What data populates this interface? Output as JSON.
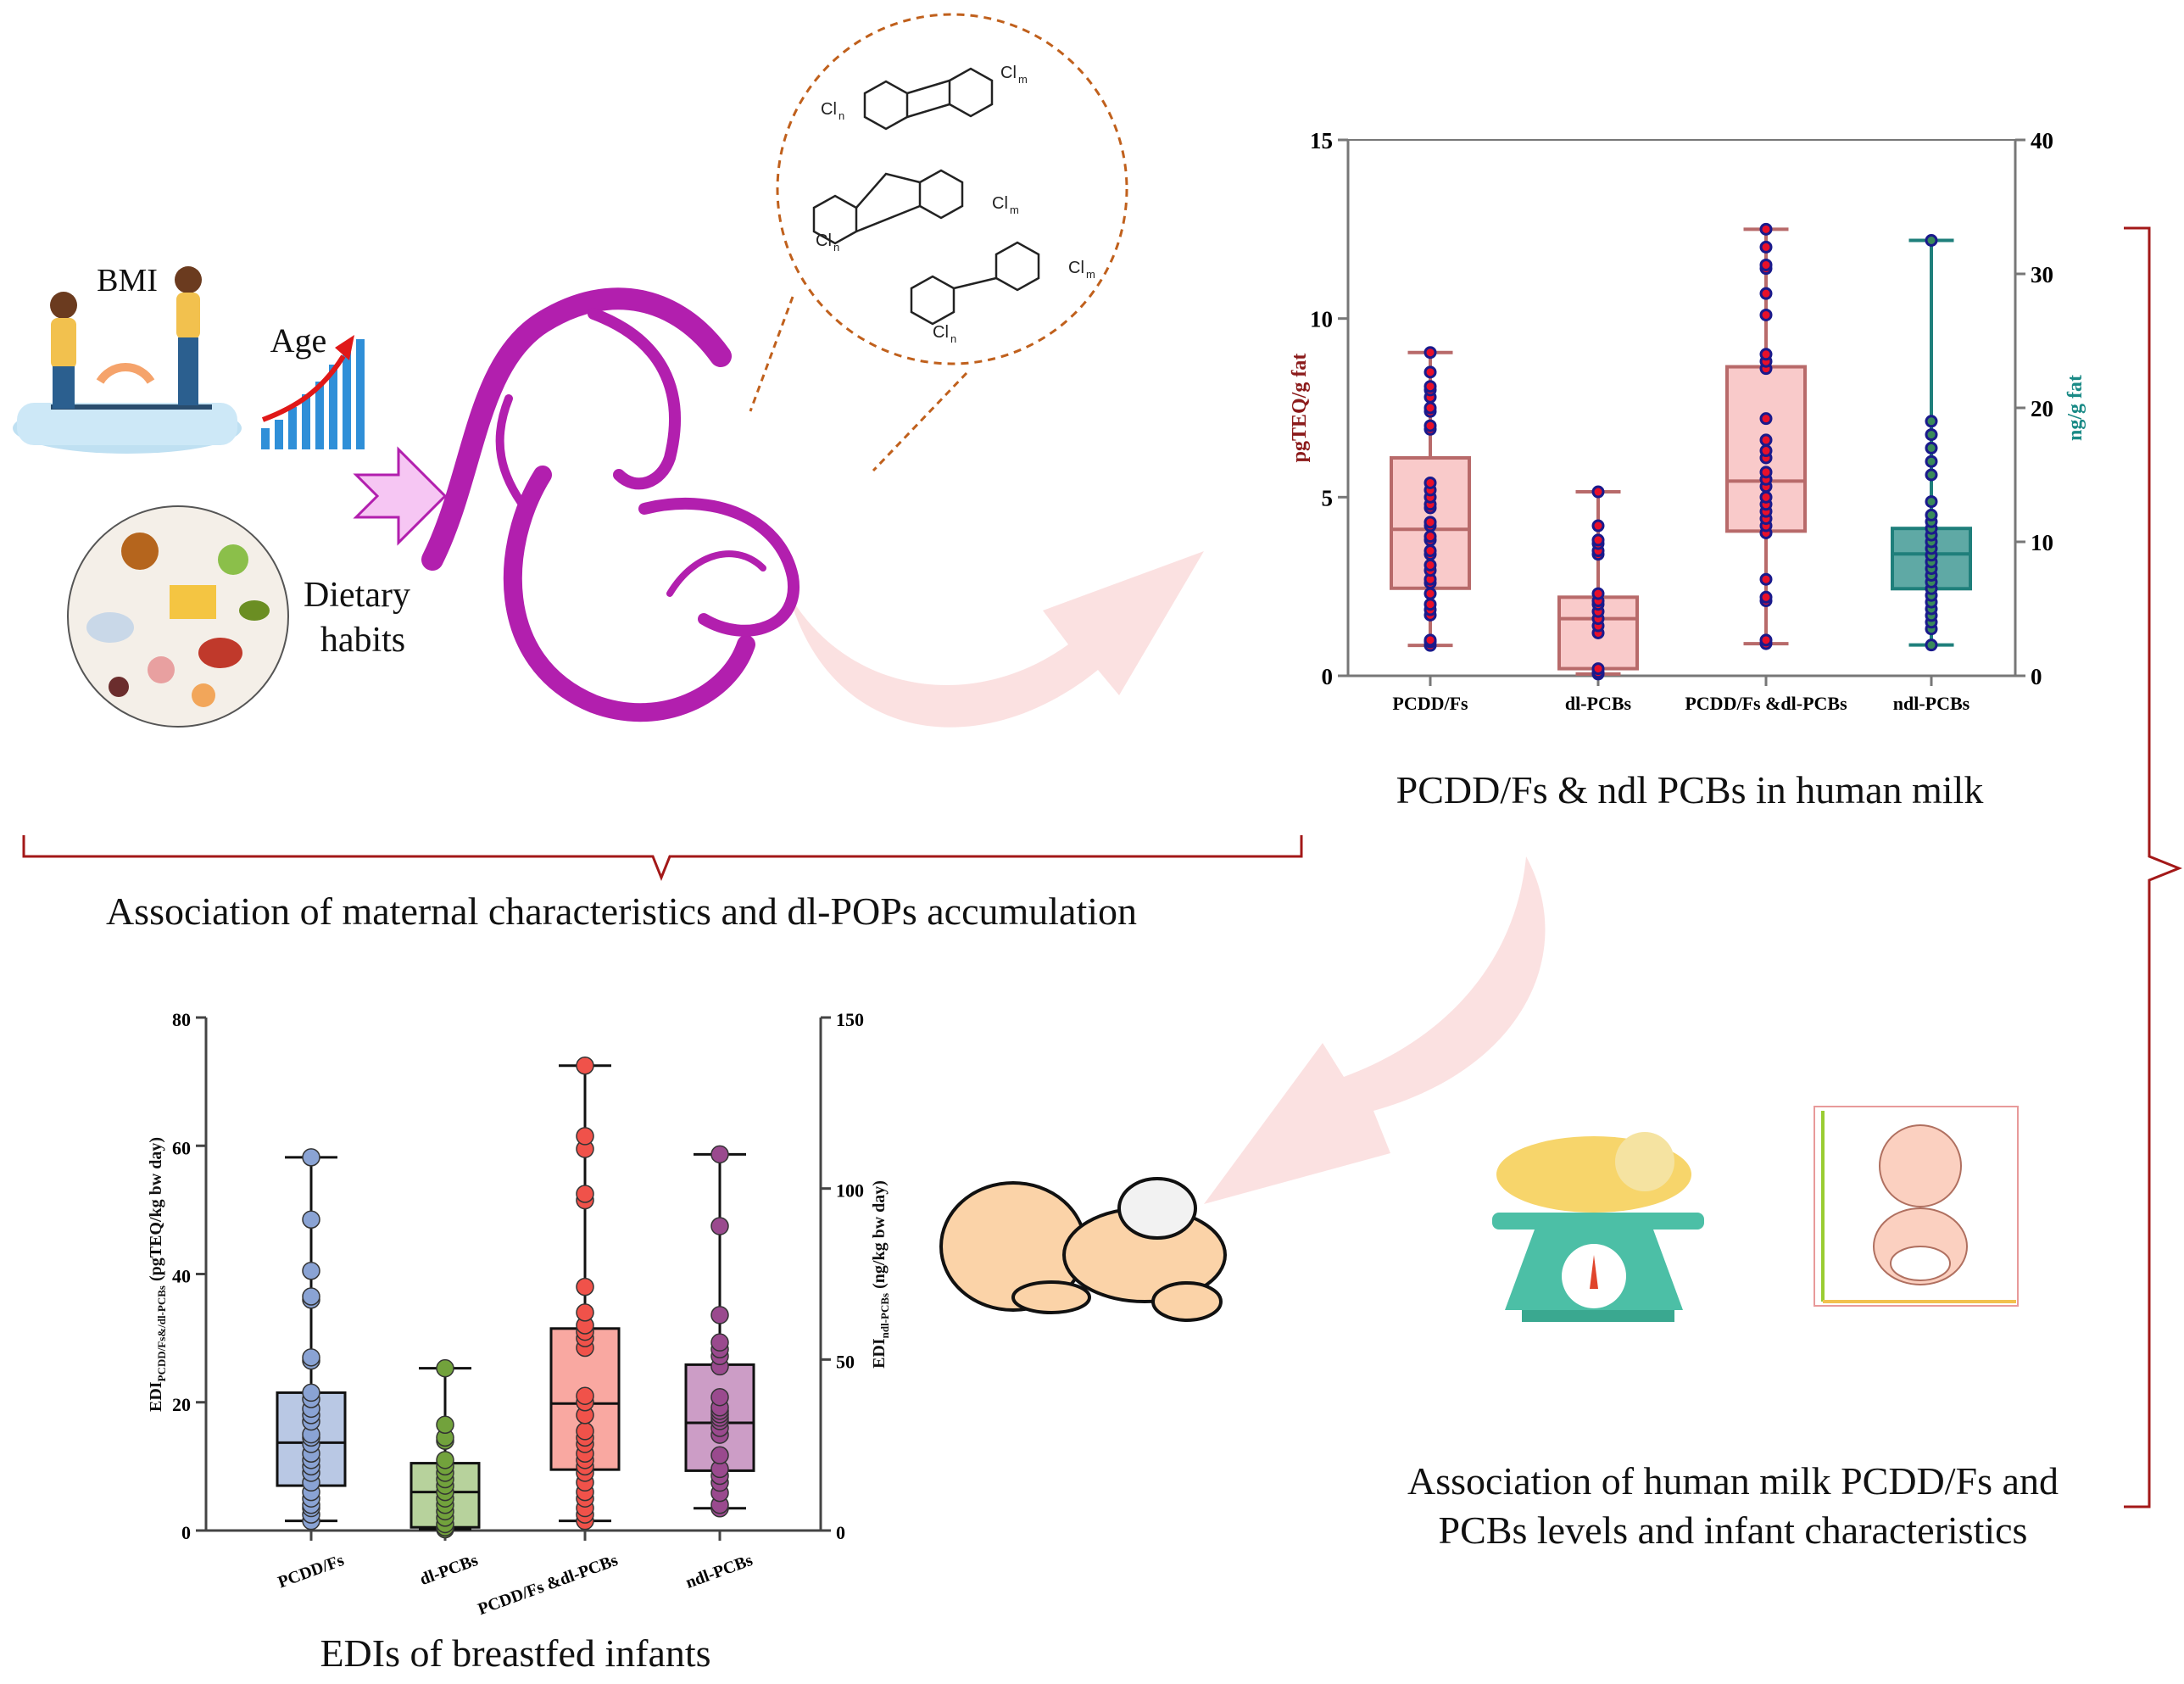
{
  "left_panel": {
    "bmi_label": "BMI",
    "age_label": "Age",
    "diet_label_line1": "Dietary",
    "diet_label_line2": "habits",
    "caption": "Association of maternal characteristics and dl-POPs accumulation"
  },
  "molecules": {
    "labels": [
      "Cl",
      "m",
      "Cl",
      "n",
      "Cl",
      "m",
      "Cl",
      "n",
      "Cl",
      "m",
      "Cl",
      "n"
    ]
  },
  "top_chart_caption": "PCDD/Fs & ndl PCBs in human milk",
  "infant_caption_line1": "Association of human milk PCDD/Fs and",
  "infant_caption_line2": "PCBs levels and infant characteristics",
  "bottom_chart_caption": "EDIs of breastfed infants",
  "colors": {
    "mother": "#b21fae",
    "arrow_pink": "#f7c9c9",
    "bracket": "#a31818",
    "molecule_circle": "#c0601c"
  },
  "chart_data": [
    {
      "type": "box",
      "title": "",
      "categories": [
        "PCDD/Fs",
        "dl-PCBs",
        "PCDD/Fs &dl-PCBs",
        "ndl-PCBs"
      ],
      "ylabel_left": "pgTEQ/g fat",
      "ylabel_right": "ng/g fat",
      "ylim_left": [
        0,
        15
      ],
      "ylim_right": [
        0,
        40
      ],
      "yticks_left": [
        "0",
        "5",
        "10",
        "15"
      ],
      "yticks_right": [
        "0",
        "10",
        "20",
        "30",
        "40"
      ],
      "grid": false,
      "label_colors": {
        "left": "#8b1a1a",
        "right": "#1a8a86"
      },
      "series": [
        {
          "category": "PCDD/Fs",
          "axis": "left",
          "min": 0.85,
          "q1": 2.45,
          "median": 4.1,
          "q3": 6.1,
          "max": 9.05,
          "box_color": "#f9caca",
          "line_color": "#b86a6a",
          "point_color": "#e8102a",
          "point_edge": "#1a1a8c",
          "points": [
            0.85,
            0.95,
            1.0,
            1.7,
            1.85,
            2.0,
            2.3,
            2.6,
            2.7,
            2.95,
            3.1,
            3.4,
            3.5,
            3.8,
            3.9,
            4.2,
            4.3,
            4.7,
            4.8,
            5.0,
            5.2,
            5.4,
            6.9,
            7.0,
            7.4,
            7.5,
            7.8,
            8.0,
            8.1,
            8.5,
            9.05
          ]
        },
        {
          "category": "dl-PCBs",
          "axis": "left",
          "min": 0.05,
          "q1": 0.2,
          "median": 1.6,
          "q3": 2.2,
          "max": 5.15,
          "box_color": "#f9caca",
          "line_color": "#b86a6a",
          "point_color": "#e8102a",
          "point_edge": "#1a1a8c",
          "points": [
            0.05,
            0.1,
            0.2,
            1.2,
            1.4,
            1.6,
            1.8,
            2.0,
            2.1,
            2.3,
            3.4,
            3.5,
            3.7,
            3.8,
            4.2,
            5.15
          ]
        },
        {
          "category": "PCDD/Fs &dl-PCBs",
          "axis": "left",
          "min": 0.9,
          "q1": 4.05,
          "median": 5.45,
          "q3": 8.65,
          "max": 12.5,
          "box_color": "#f9caca",
          "line_color": "#b86a6a",
          "point_color": "#e8102a",
          "point_edge": "#1a1a8c",
          "points": [
            0.9,
            1.0,
            2.1,
            2.2,
            2.7,
            4.0,
            4.2,
            4.4,
            4.6,
            4.8,
            5.0,
            5.3,
            5.5,
            5.7,
            6.1,
            6.3,
            6.6,
            7.2,
            8.6,
            8.8,
            9.0,
            10.1,
            10.7,
            11.4,
            11.5,
            12.0,
            12.5
          ]
        },
        {
          "category": "ndl-PCBs",
          "axis": "right",
          "min": 2.3,
          "q1": 6.5,
          "median": 9.1,
          "q3": 11.0,
          "max": 32.5,
          "box_color": "#5fa9a5",
          "line_color": "#1f7f7b",
          "point_color": "#3a8a5a",
          "point_edge": "#1a1a8c",
          "points": [
            2.3,
            3.5,
            4.0,
            4.5,
            5.0,
            5.5,
            6.0,
            6.5,
            7.0,
            7.5,
            8.0,
            8.5,
            9.0,
            9.5,
            10.0,
            10.5,
            11.0,
            11.5,
            12.0,
            13.0,
            15.0,
            16.0,
            17.0,
            18.0,
            19.0,
            32.5
          ]
        }
      ]
    },
    {
      "type": "box",
      "title": "",
      "categories": [
        "PCDD/Fs",
        "dl-PCBs",
        "PCDD/Fs &dl-PCBs",
        "ndl-PCBs"
      ],
      "ylabel_left": {
        "main": "EDI",
        "sub": "PCDD/Fs&/dl-PCBs",
        "unit": " (pgTEQ/kg bw day)"
      },
      "ylabel_right": {
        "main": "EDI",
        "sub": "ndl-PCBs",
        "unit": " (ng/kg bw day)"
      },
      "ylim_left": [
        0,
        80
      ],
      "ylim_right": [
        0,
        150
      ],
      "yticks_left": [
        "0",
        "20",
        "40",
        "60",
        "80"
      ],
      "yticks_right": [
        "0",
        "50",
        "100",
        "150"
      ],
      "grid": false,
      "series": [
        {
          "category": "PCDD/Fs",
          "axis": "left",
          "min": 1.5,
          "q1": 7,
          "median": 13.7,
          "q3": 21.5,
          "max": 58.2,
          "box_color": "#b9c8e4",
          "line_color": "#111111",
          "point_color": "#8aa3d4",
          "point_edge": "#333333",
          "points": [
            1.5,
            2.5,
            3.5,
            4,
            5,
            6,
            7.5,
            9,
            10,
            11,
            12,
            13.5,
            14.5,
            15,
            17,
            18,
            19,
            20.5,
            21.5,
            26.5,
            27,
            36,
            36.5,
            40.5,
            48.5,
            58.2
          ]
        },
        {
          "category": "dl-PCBs",
          "axis": "left",
          "min": 0.2,
          "q1": 0.5,
          "median": 6,
          "q3": 10.5,
          "max": 25.3,
          "box_color": "#b7d29c",
          "line_color": "#111111",
          "point_color": "#72a23c",
          "point_edge": "#333333",
          "points": [
            0.2,
            0.5,
            1,
            2,
            3,
            4,
            5,
            6,
            7,
            8,
            9,
            10,
            11,
            14,
            14.5,
            16.5,
            25.3
          ]
        },
        {
          "category": "PCDD/Fs &dl-PCBs",
          "axis": "left",
          "min": 1.5,
          "q1": 9.5,
          "median": 19.8,
          "q3": 31.5,
          "max": 72.5,
          "box_color": "#f9a8a1",
          "line_color": "#111111",
          "point_color": "#f0524a",
          "point_edge": "#333333",
          "points": [
            1.5,
            2.5,
            3.5,
            5,
            6,
            7.5,
            9,
            10,
            11,
            12,
            13.5,
            14.5,
            15.5,
            18,
            20,
            21,
            28.5,
            30,
            31,
            32,
            34,
            38,
            51.5,
            52.5,
            59.5,
            61.5,
            72.5
          ]
        },
        {
          "category": "ndl-PCBs",
          "axis": "right",
          "min": 6.5,
          "q1": 17.5,
          "median": 31.5,
          "q3": 48.5,
          "max": 110,
          "box_color": "#cc9dc6",
          "line_color": "#111111",
          "point_color": "#9a4a8e",
          "point_edge": "#333333",
          "points": [
            6.5,
            7.5,
            11,
            14,
            16,
            18,
            22,
            28,
            30,
            32,
            33,
            34,
            35,
            36,
            39,
            48,
            51,
            53,
            55,
            63,
            89,
            110
          ]
        }
      ]
    }
  ]
}
